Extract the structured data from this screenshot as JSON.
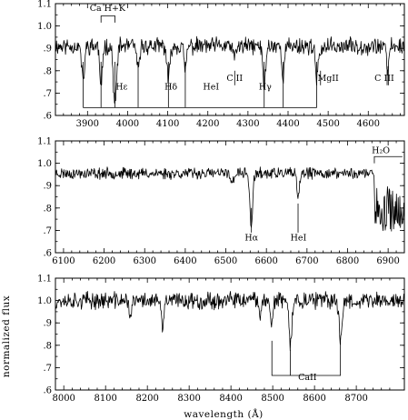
{
  "chart_data": [
    {
      "type": "line",
      "xlim": [
        3820,
        4690
      ],
      "ylim": [
        0.6,
        1.1
      ],
      "xticks": [
        3900,
        4000,
        4100,
        4200,
        4300,
        4400,
        4500,
        4600
      ],
      "xtick_labels": [
        "3900",
        "4000",
        "4100",
        "4200",
        "4300",
        "4400",
        "4500",
        "4600"
      ],
      "yticks": [
        0.6,
        0.7,
        0.8,
        0.9,
        1.0,
        1.1
      ],
      "ytick_labels": [
        ".6",
        ".7",
        ".8",
        ".9",
        "1.0",
        "1.1"
      ],
      "continuum": 0.91,
      "noise": 0.03,
      "seed": 11,
      "lines": [
        {
          "x": 3933.7,
          "depth": 0.2,
          "width": 3
        },
        {
          "x": 3968.5,
          "depth": 0.27,
          "width": 4
        },
        {
          "x": 3889.0,
          "depth": 0.16,
          "width": 3.5
        },
        {
          "x": 4026.2,
          "depth": 0.12,
          "width": 3
        },
        {
          "x": 4101.7,
          "depth": 0.16,
          "width": 3.5
        },
        {
          "x": 4143.8,
          "depth": 0.11,
          "width": 3
        },
        {
          "x": 4267.0,
          "depth": 0.06,
          "width": 3
        },
        {
          "x": 4340.5,
          "depth": 0.18,
          "width": 3.5
        },
        {
          "x": 4387.9,
          "depth": 0.14,
          "width": 3
        },
        {
          "x": 4471.5,
          "depth": 0.16,
          "width": 3
        },
        {
          "x": 4481.0,
          "depth": 0.06,
          "width": 2.5
        },
        {
          "x": 4647.0,
          "depth": 0.08,
          "width": 2.5
        },
        {
          "x": 4650.0,
          "depth": 0.05,
          "width": 2.5
        }
      ],
      "annotations": [
        {
          "text": "Ca  H+K",
          "x": 3950,
          "y": 1.068
        },
        {
          "text": "Hε",
          "x": 3985,
          "y": 0.715
        },
        {
          "text": "Hδ",
          "x": 4108,
          "y": 0.715
        },
        {
          "text": "HeI",
          "x": 4208,
          "y": 0.715
        },
        {
          "text": "C II",
          "x": 4267,
          "y": 0.755
        },
        {
          "text": "Hγ",
          "x": 4343,
          "y": 0.715
        },
        {
          "text": "MgII",
          "x": 4500,
          "y": 0.755
        },
        {
          "text": "C  III",
          "x": 4640,
          "y": 0.755
        }
      ]
    },
    {
      "type": "line",
      "xlim": [
        6080,
        6940
      ],
      "ylim": [
        0.6,
        1.1
      ],
      "xticks": [
        6100,
        6200,
        6300,
        6400,
        6500,
        6600,
        6700,
        6800,
        6900
      ],
      "xtick_labels": [
        "6100",
        "6200",
        "6300",
        "6400",
        "6500",
        "6600",
        "6700",
        "6800",
        "6900"
      ],
      "yticks": [
        0.6,
        0.7,
        0.8,
        0.9,
        1.0,
        1.1
      ],
      "ytick_labels": [
        ".6",
        ".7",
        ".8",
        ".9",
        "1.0",
        "1.1"
      ],
      "continuum": 0.955,
      "noise": 0.02,
      "seed": 23,
      "lines": [
        {
          "x": 6562.8,
          "depth": 0.24,
          "width": 3.5
        },
        {
          "x": 6678.2,
          "depth": 0.12,
          "width": 3
        },
        {
          "x": 6516.0,
          "depth": 0.05,
          "width": 3
        }
      ],
      "bands": [
        {
          "x0": 6866,
          "x1": 6940,
          "depth": 0.13,
          "noise": 0.09
        }
      ],
      "annotations": [
        {
          "text": "Hα",
          "x": 6563,
          "y": 0.655
        },
        {
          "text": "HeI",
          "x": 6679,
          "y": 0.655
        },
        {
          "text": "H₂O",
          "x": 6882,
          "y": 1.045
        }
      ]
    },
    {
      "type": "line",
      "xlim": [
        7980,
        8815
      ],
      "ylim": [
        0.6,
        1.1
      ],
      "xticks": [
        8000,
        8100,
        8200,
        8300,
        8400,
        8500,
        8600,
        8700
      ],
      "xtick_labels": [
        "8000",
        "8100",
        "8200",
        "8300",
        "8400",
        "8500",
        "8600",
        "8700"
      ],
      "yticks": [
        0.6,
        0.7,
        0.8,
        0.9,
        1.0,
        1.1
      ],
      "ytick_labels": [
        ".6",
        ".7",
        ".8",
        ".9",
        "1.0",
        "1.1"
      ],
      "continuum": 1.0,
      "noise": 0.03,
      "seed": 37,
      "lines": [
        {
          "x": 8498.0,
          "depth": 0.1,
          "width": 3
        },
        {
          "x": 8542.1,
          "depth": 0.2,
          "width": 3.5
        },
        {
          "x": 8662.1,
          "depth": 0.17,
          "width": 3.5
        },
        {
          "x": 8236.0,
          "depth": 0.13,
          "width": 3
        },
        {
          "x": 8160.0,
          "depth": 0.07,
          "width": 3
        },
        {
          "x": 8470.0,
          "depth": 0.05,
          "width": 3
        }
      ],
      "annotations": [
        {
          "text": "CaII",
          "x": 8583,
          "y": 0.645
        }
      ],
      "xlabel": "wavelength (Å)"
    }
  ],
  "ylabel": "normalized flux"
}
